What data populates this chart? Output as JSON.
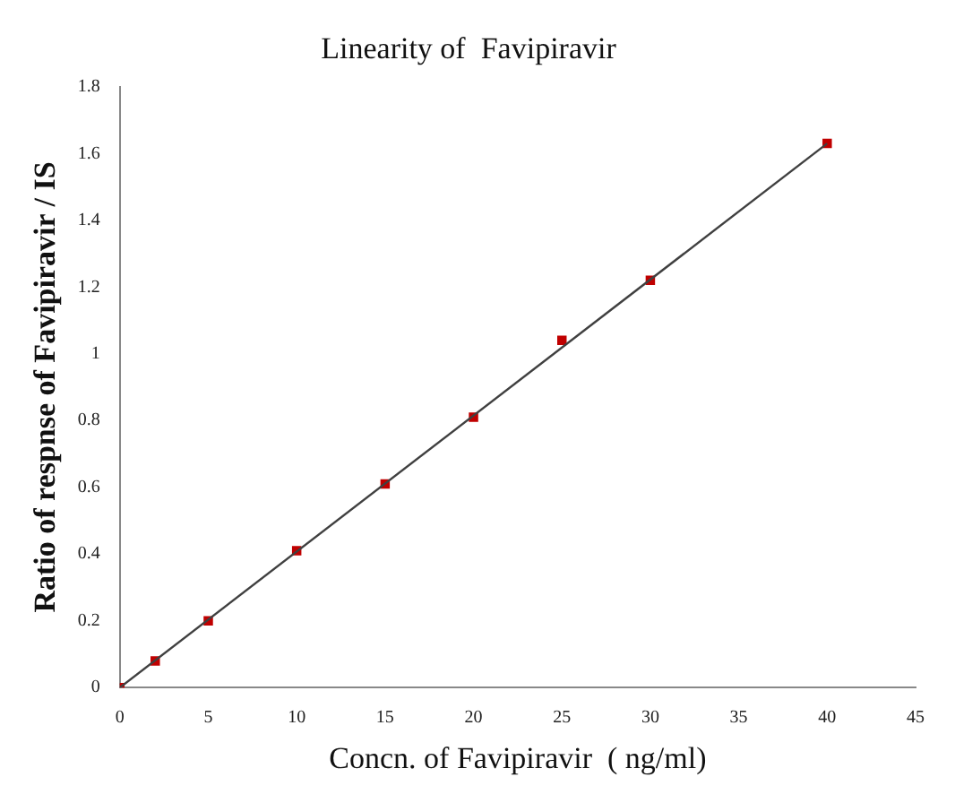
{
  "chart_data": {
    "type": "scatter",
    "title": "Linearity of  Favipiravir",
    "xlabel": "Concn. of Favipiravir  ( ng/ml)",
    "ylabel": "Ratio of respnse of Favipiravir / IS",
    "x": [
      0,
      2,
      5,
      10,
      15,
      20,
      25,
      30,
      40
    ],
    "series": [
      {
        "color": "#c00000",
        "marker": "square",
        "values": [
          0,
          0.08,
          0.2,
          0.41,
          0.61,
          0.81,
          1.04,
          1.22,
          1.63
        ]
      },
      {
        "type": "line",
        "color": "#404040",
        "marker": "none",
        "x": [
          0,
          40
        ],
        "values": [
          0,
          1.63
        ]
      }
    ],
    "xlim": [
      0,
      45
    ],
    "xticks": [
      0,
      5,
      10,
      15,
      20,
      25,
      30,
      35,
      40,
      45
    ],
    "ylim": [
      0,
      1.8
    ],
    "yticks": [
      0,
      0.2,
      0.4,
      0.6,
      0.8,
      1,
      1.2,
      1.4,
      1.6,
      1.8
    ],
    "grid": false,
    "legend": false
  }
}
